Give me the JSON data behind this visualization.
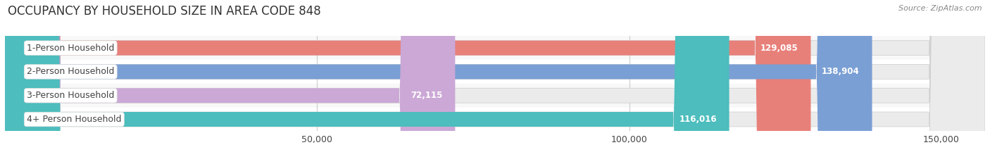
{
  "title": "OCCUPANCY BY HOUSEHOLD SIZE IN AREA CODE 848",
  "source": "Source: ZipAtlas.com",
  "categories": [
    "1-Person Household",
    "2-Person Household",
    "3-Person Household",
    "4+ Person Household"
  ],
  "values": [
    129085,
    138904,
    72115,
    116016
  ],
  "bar_colors": [
    "#E8807A",
    "#7A9FD4",
    "#CBA8D6",
    "#4DBDBD"
  ],
  "bar_bg_color": "#EBEBEB",
  "bar_border_color": "#CCCCCC",
  "xlim": [
    0,
    157000
  ],
  "xticks": [
    50000,
    100000,
    150000
  ],
  "xtick_labels": [
    "50,000",
    "100,000",
    "150,000"
  ],
  "label_fontsize": 9,
  "value_fontsize": 8.5,
  "title_fontsize": 12,
  "source_fontsize": 8,
  "bar_height": 0.62,
  "background_color": "#FFFFFF",
  "grid_color": "#CCCCCC",
  "text_color": "#444444",
  "label_bg_color": "#FFFFFF",
  "row_bg_colors": [
    "#F8F8F8",
    "#FFFFFF",
    "#F8F8F8",
    "#FFFFFF"
  ]
}
